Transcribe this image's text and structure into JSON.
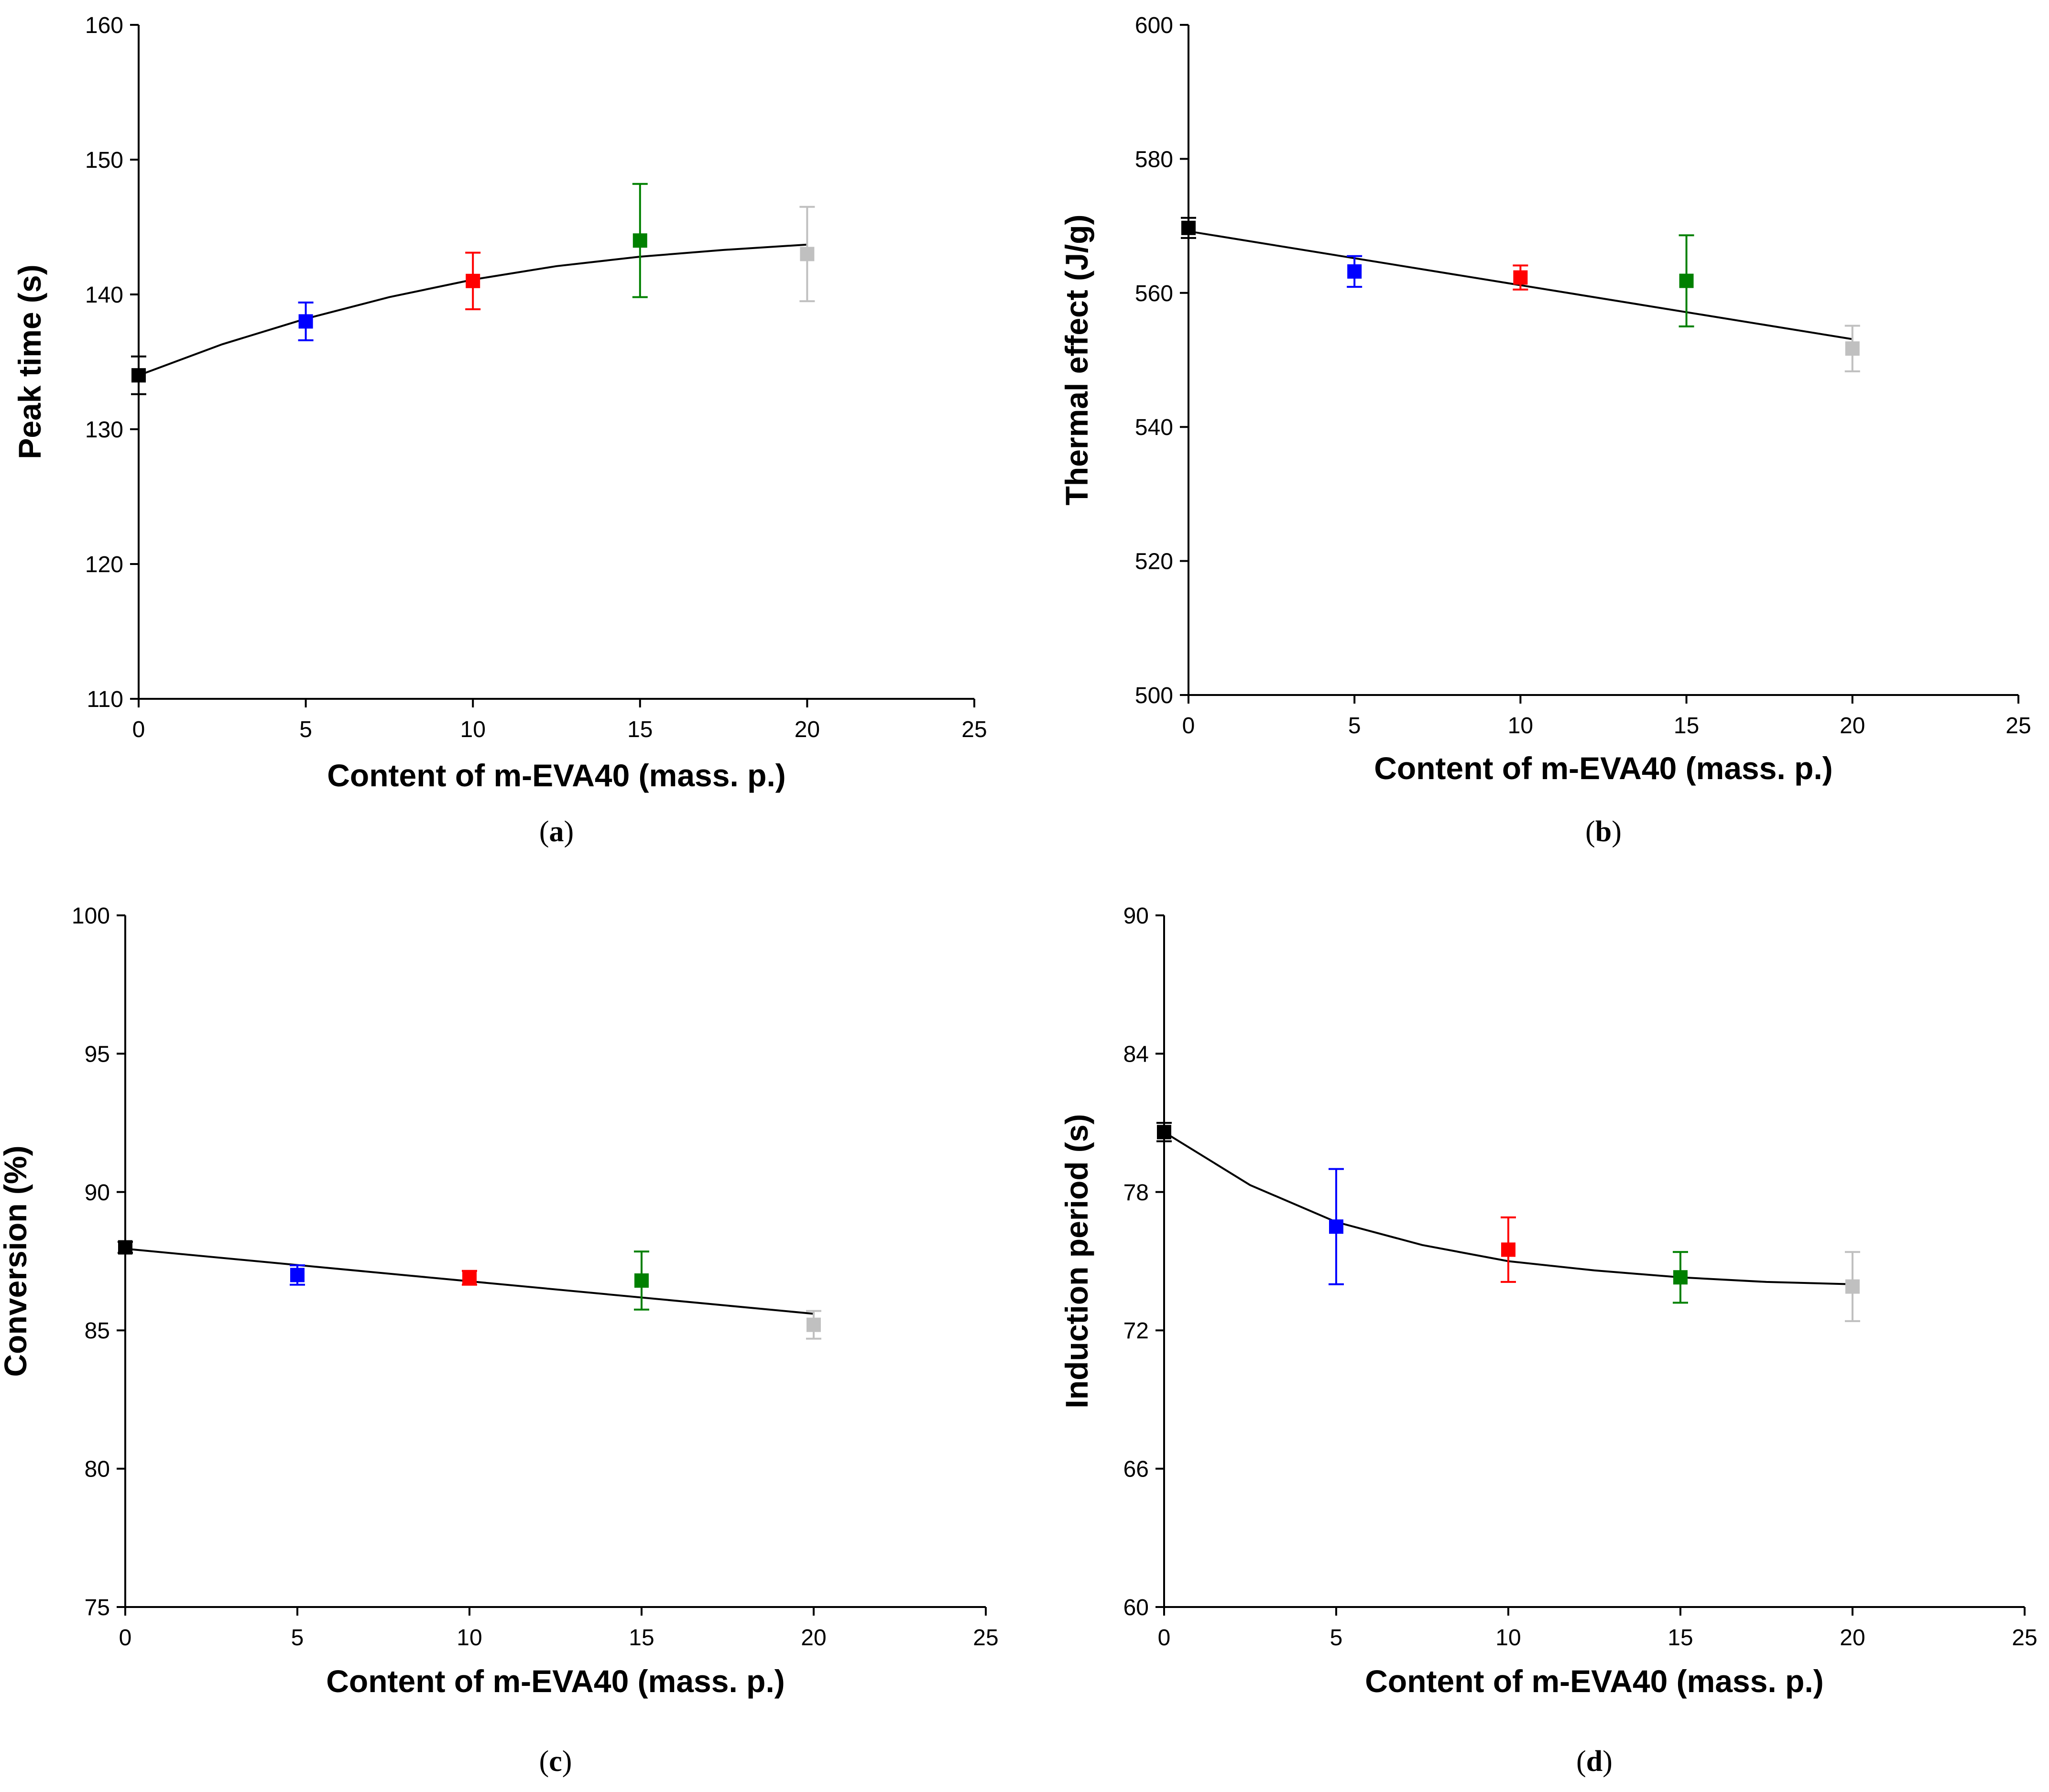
{
  "colors": {
    "axis": "#000000",
    "fit_line": "#000000",
    "point_0": "#000000",
    "point_5": "#0000ff",
    "point_10": "#ff0000",
    "point_15": "#008000",
    "point_20": "#c0c0c0"
  },
  "chart_data": [
    {
      "id": "a",
      "type": "scatter",
      "panel_label": "a",
      "xlabel": "Content of m-EVA40 (mass. p.)",
      "ylabel": "Peak time (s)",
      "xlim": [
        0,
        25
      ],
      "ylim": [
        110,
        160
      ],
      "xticks": [
        0,
        5,
        10,
        15,
        20,
        25
      ],
      "yticks": [
        110,
        120,
        130,
        140,
        150,
        160
      ],
      "grid": false,
      "points": [
        {
          "x": 0,
          "y": 134,
          "err": 1.4,
          "color": "#000000"
        },
        {
          "x": 5,
          "y": 138,
          "err": 1.4,
          "color": "#0000ff"
        },
        {
          "x": 10,
          "y": 141,
          "err": 2.1,
          "color": "#ff0000"
        },
        {
          "x": 15,
          "y": 144,
          "err": 4.2,
          "color": "#008000"
        },
        {
          "x": 20,
          "y": 143,
          "err": 3.5,
          "color": "#c0c0c0"
        }
      ],
      "fit": {
        "x": [
          0,
          2.5,
          5,
          7.5,
          10,
          12.5,
          15,
          17.5,
          20
        ],
        "y": [
          134,
          136.3,
          138.2,
          139.8,
          141.1,
          142.1,
          142.8,
          143.3,
          143.7
        ]
      }
    },
    {
      "id": "b",
      "type": "scatter",
      "panel_label": "b",
      "xlabel": "Content of m-EVA40 (mass. p.)",
      "ylabel": "Thermal effect (J/g)",
      "xlim": [
        0,
        25
      ],
      "ylim": [
        500,
        600
      ],
      "xticks": [
        0,
        5,
        10,
        15,
        20,
        25
      ],
      "yticks": [
        500,
        520,
        540,
        560,
        580,
        600
      ],
      "grid": false,
      "points": [
        {
          "x": 0,
          "y": 569.7,
          "err": 1.5,
          "color": "#000000"
        },
        {
          "x": 5,
          "y": 563.2,
          "err": 2.3,
          "color": "#0000ff"
        },
        {
          "x": 10,
          "y": 562.3,
          "err": 1.8,
          "color": "#ff0000"
        },
        {
          "x": 15,
          "y": 561.8,
          "err": 6.8,
          "color": "#008000"
        },
        {
          "x": 20,
          "y": 551.7,
          "err": 3.4,
          "color": "#c0c0c0"
        }
      ],
      "fit": {
        "x": [
          0,
          20
        ],
        "y": [
          569.2,
          553.1
        ]
      }
    },
    {
      "id": "c",
      "type": "scatter",
      "panel_label": "c",
      "xlabel": "Content of m-EVA40 (mass. p.)",
      "ylabel": "Conversion (%)",
      "xlim": [
        0,
        25
      ],
      "ylim": [
        75,
        100
      ],
      "xticks": [
        0,
        5,
        10,
        15,
        20,
        25
      ],
      "yticks": [
        75,
        80,
        85,
        90,
        95,
        100
      ],
      "grid": false,
      "points": [
        {
          "x": 0,
          "y": 88.0,
          "err": 0.2,
          "color": "#000000"
        },
        {
          "x": 5,
          "y": 87.0,
          "err": 0.35,
          "color": "#0000ff"
        },
        {
          "x": 10,
          "y": 86.9,
          "err": 0.25,
          "color": "#ff0000"
        },
        {
          "x": 15,
          "y": 86.8,
          "err": 1.05,
          "color": "#008000"
        },
        {
          "x": 20,
          "y": 85.2,
          "err": 0.5,
          "color": "#c0c0c0"
        }
      ],
      "fit": {
        "x": [
          0,
          20
        ],
        "y": [
          87.95,
          85.6
        ]
      }
    },
    {
      "id": "d",
      "type": "scatter",
      "panel_label": "d",
      "xlabel": "Content of m-EVA40 (mass. p.)",
      "ylabel": "Induction period (s)",
      "xlim": [
        0,
        25
      ],
      "ylim": [
        60,
        90
      ],
      "xticks": [
        0,
        5,
        10,
        15,
        20,
        25
      ],
      "yticks": [
        60,
        66,
        72,
        78,
        84,
        90
      ],
      "grid": false,
      "points": [
        {
          "x": 0,
          "y": 80.6,
          "err": 0.4,
          "color": "#000000"
        },
        {
          "x": 5,
          "y": 76.5,
          "err": 2.5,
          "color": "#0000ff"
        },
        {
          "x": 10,
          "y": 75.5,
          "err": 1.4,
          "color": "#ff0000"
        },
        {
          "x": 15,
          "y": 74.3,
          "err": 1.1,
          "color": "#008000"
        },
        {
          "x": 20,
          "y": 73.9,
          "err": 1.5,
          "color": "#c0c0c0"
        }
      ],
      "fit": {
        "x": [
          0,
          2.5,
          5,
          7.5,
          10,
          12.5,
          15,
          17.5,
          20
        ],
        "y": [
          80.6,
          78.3,
          76.7,
          75.7,
          75.0,
          74.6,
          74.3,
          74.1,
          74.0
        ]
      }
    }
  ]
}
